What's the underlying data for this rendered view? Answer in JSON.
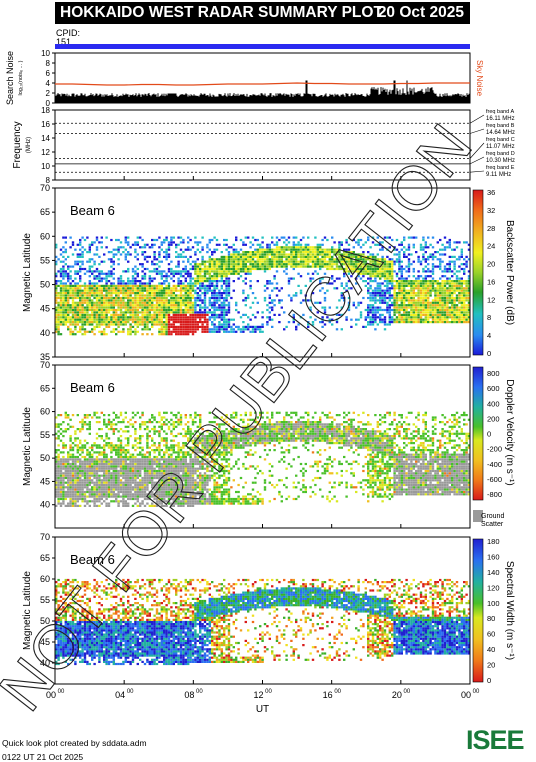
{
  "header": {
    "title": "HOKKAIDO WEST RADAR SUMMARY PLOT",
    "date": "20 Oct 2025",
    "cpid_label": "CPID:",
    "cpid_value": "151"
  },
  "footer": {
    "credit": "Quick look plot created by sddata.adm",
    "timestamp": "0122 UT 21 Oct 2025",
    "logo_text": "ISEE"
  },
  "watermark": "NOT FOR PUBLICATION",
  "colors": {
    "blue_bar": "#2a2af0",
    "sky_noise": "#e24a1a",
    "ground_scatter": "#9a9a9a"
  },
  "chart_data": [
    {
      "type": "area",
      "name": "noise-panel",
      "ylabel": "Search Noise",
      "ylabel2": "log₁₀(noisₑ ... )",
      "ylim": [
        0,
        10
      ],
      "yticks": [
        0,
        2,
        4,
        6,
        8,
        10
      ],
      "legend": "Sky Noise",
      "sky_noise": [
        3.8,
        3.8,
        3.7,
        3.6,
        3.6,
        3.7,
        3.7,
        3.6,
        3.6,
        3.7,
        3.8,
        3.8,
        3.8,
        3.9,
        4.0,
        3.9,
        3.9,
        3.8,
        3.8,
        3.8,
        3.9,
        3.9,
        4.0,
        4.0,
        4.0
      ]
    },
    {
      "type": "line",
      "name": "frequency-panel",
      "ylabel": "Frequency",
      "yunit": "(MHz)",
      "ylim": [
        8,
        18
      ],
      "yticks": [
        8,
        10,
        12,
        14,
        16,
        18
      ],
      "bands": [
        {
          "label": "freq band A",
          "value": "16.11 MHz",
          "freq": 16.11
        },
        {
          "label": "freq band B",
          "value": "14.64 MHz",
          "freq": 14.64
        },
        {
          "label": "freq band C",
          "value": "11.07 MHz",
          "freq": 11.07
        },
        {
          "label": "freq band D",
          "value": "10.30 MHz",
          "freq": 10.3
        },
        {
          "label": "freq band E",
          "value": "9.11 MHz",
          "freq": 9.11
        }
      ]
    },
    {
      "type": "heatmap",
      "name": "power-panel",
      "beam": "Beam  6",
      "ylabel": "Magnetic Latitude",
      "ylim": [
        35,
        70
      ],
      "yticks": [
        35,
        40,
        45,
        50,
        55,
        60,
        65,
        70
      ],
      "colorbar_label": "Backscatter Power (dB)",
      "colorbar_ticks": [
        "0",
        "4",
        "8",
        "12",
        "16",
        "20",
        "24",
        "28",
        "32",
        "36"
      ]
    },
    {
      "type": "heatmap",
      "name": "velocity-panel",
      "beam": "Beam  6",
      "ylabel": "Magnetic Latitude",
      "ylim": [
        35,
        70
      ],
      "yticks": [
        40,
        45,
        50,
        55,
        60,
        65,
        70
      ],
      "colorbar_label": "Doppler Velocity (m s⁻¹)",
      "colorbar_ticks": [
        "800",
        "600",
        "400",
        "200",
        "0",
        "-200",
        "-400",
        "-600",
        "-800"
      ],
      "ground_label": "Ground",
      "ground_label2": "Scatter"
    },
    {
      "type": "heatmap",
      "name": "width-panel",
      "beam": "Beam  6",
      "ylabel": "Magnetic Latitude",
      "ylim": [
        35,
        70
      ],
      "yticks": [
        40,
        45,
        50,
        55,
        60,
        65,
        70
      ],
      "colorbar_label": "Spectral Width (m s⁻¹)",
      "colorbar_ticks": [
        "0",
        "20",
        "40",
        "60",
        "80",
        "100",
        "120",
        "140",
        "160",
        "180"
      ]
    }
  ],
  "x_axis": {
    "label": "UT",
    "ticks": [
      {
        "hour": 0,
        "text": "00",
        "sup": "00"
      },
      {
        "hour": 4,
        "text": "04",
        "sup": "00"
      },
      {
        "hour": 8,
        "text": "08",
        "sup": "00"
      },
      {
        "hour": 12,
        "text": "12",
        "sup": "00"
      },
      {
        "hour": 16,
        "text": "16",
        "sup": "00"
      },
      {
        "hour": 20,
        "text": "20",
        "sup": "00"
      },
      {
        "hour": 24,
        "text": "00",
        "sup": "00"
      }
    ]
  }
}
